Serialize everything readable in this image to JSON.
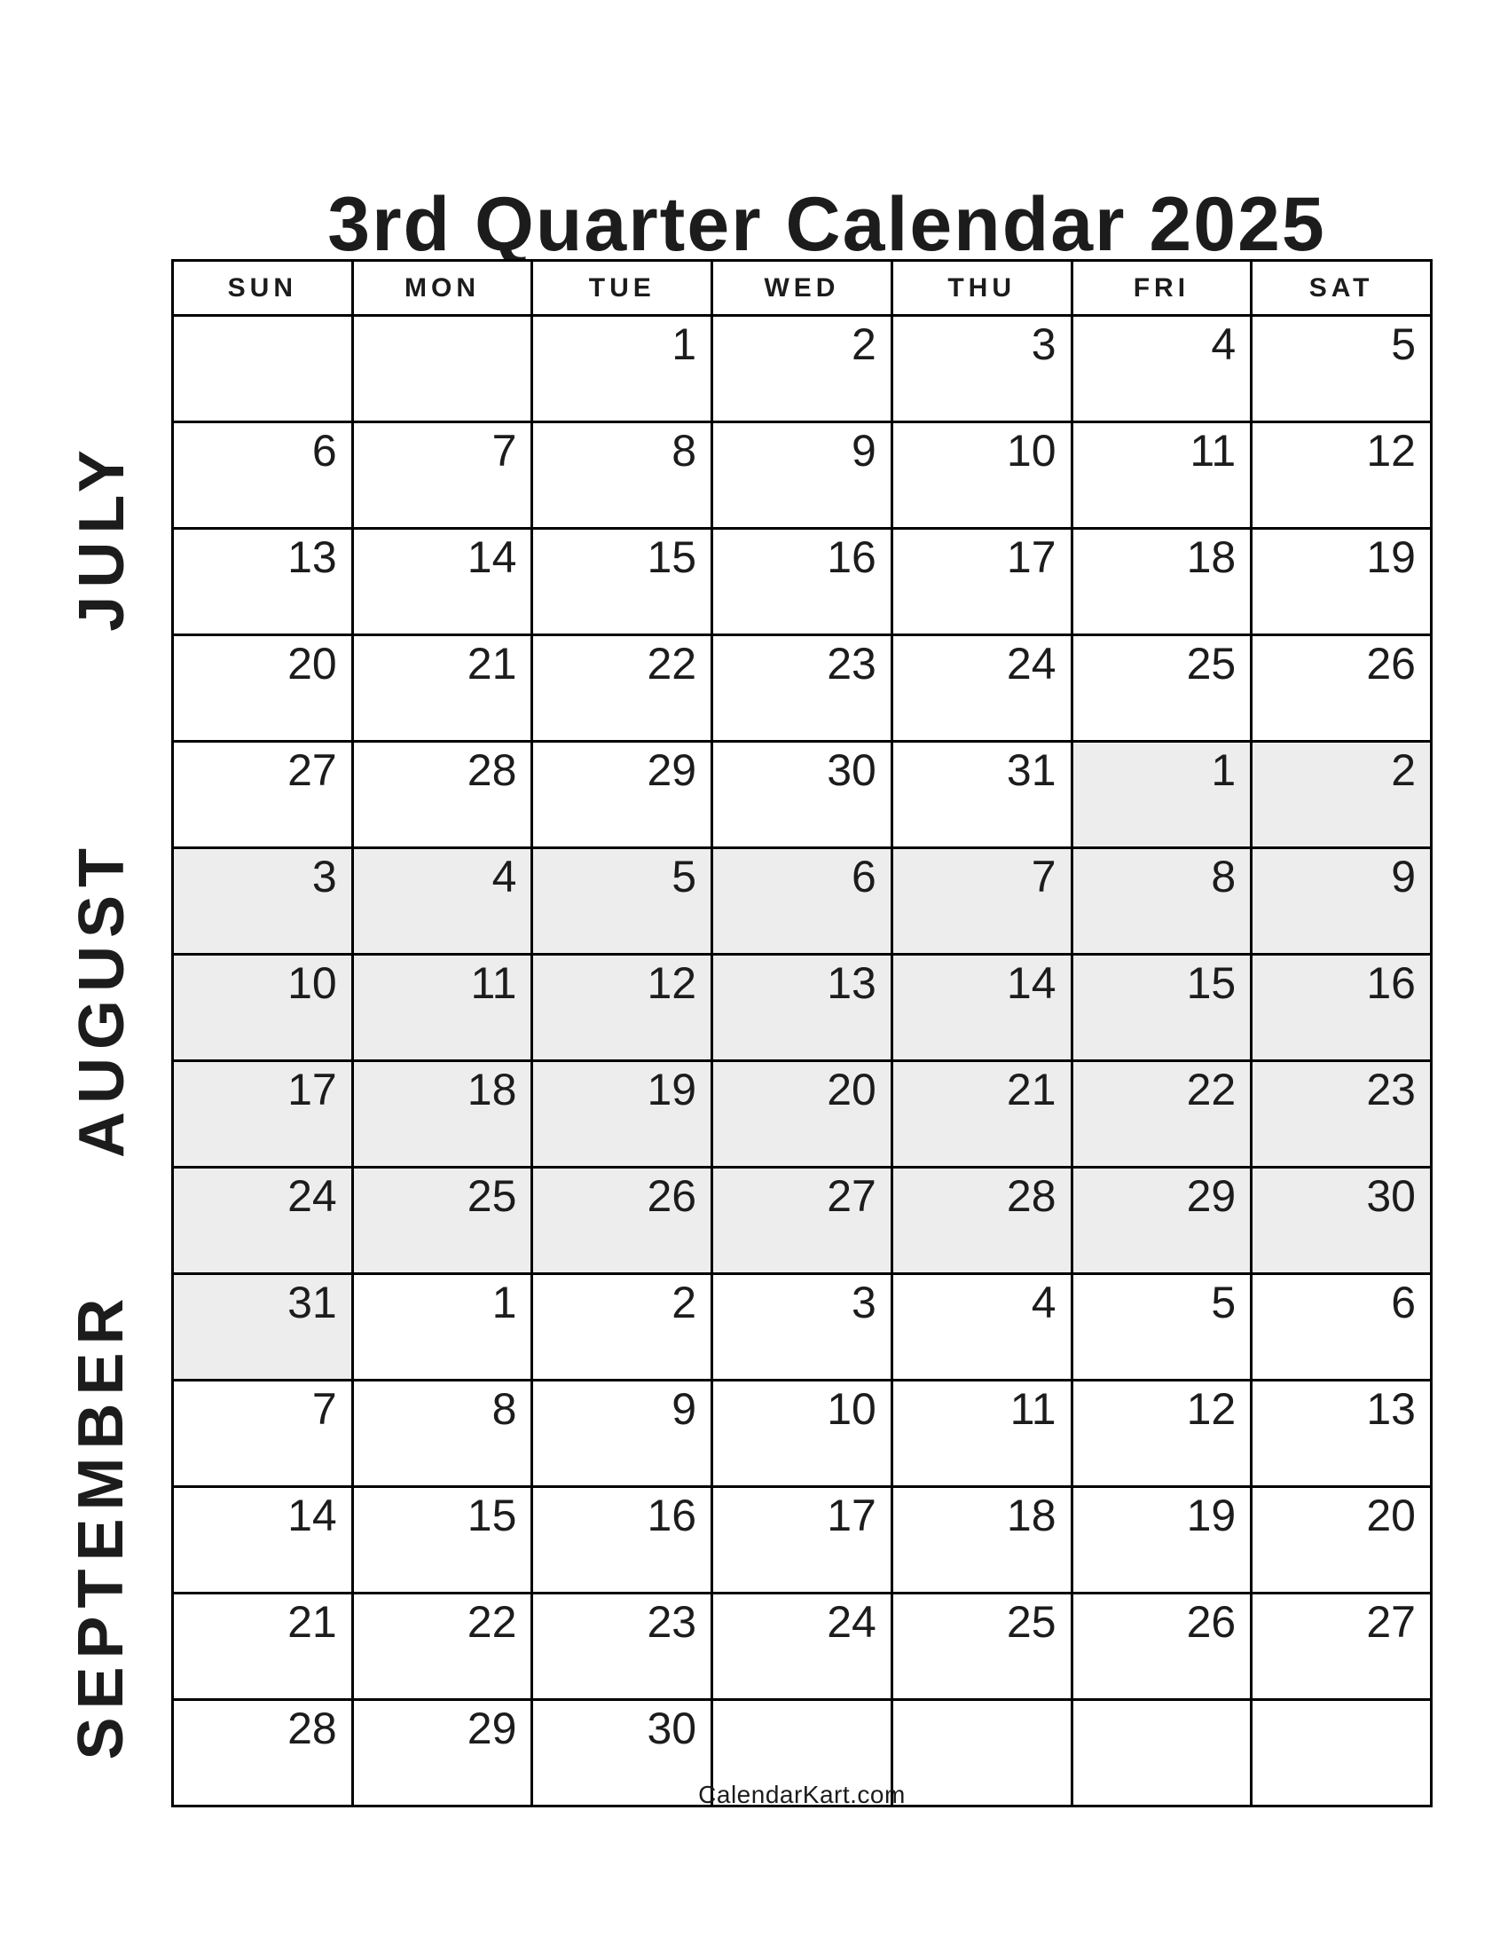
{
  "title": "3rd Quarter Calendar 2025",
  "weekdays": [
    "SUN",
    "MON",
    "TUE",
    "WED",
    "THU",
    "FRI",
    "SAT"
  ],
  "months": [
    {
      "key": "july",
      "label": "JULY"
    },
    {
      "key": "august",
      "label": "AUGUST"
    },
    {
      "key": "september",
      "label": "SEPTEMBER"
    }
  ],
  "grid": {
    "rows": [
      {
        "cells": [
          {
            "day": "",
            "shaded": false
          },
          {
            "day": "",
            "shaded": false
          },
          {
            "day": "1",
            "shaded": false
          },
          {
            "day": "2",
            "shaded": false
          },
          {
            "day": "3",
            "shaded": false
          },
          {
            "day": "4",
            "shaded": false
          },
          {
            "day": "5",
            "shaded": false
          }
        ]
      },
      {
        "cells": [
          {
            "day": "6",
            "shaded": false
          },
          {
            "day": "7",
            "shaded": false
          },
          {
            "day": "8",
            "shaded": false
          },
          {
            "day": "9",
            "shaded": false
          },
          {
            "day": "10",
            "shaded": false
          },
          {
            "day": "11",
            "shaded": false
          },
          {
            "day": "12",
            "shaded": false
          }
        ]
      },
      {
        "cells": [
          {
            "day": "13",
            "shaded": false
          },
          {
            "day": "14",
            "shaded": false
          },
          {
            "day": "15",
            "shaded": false
          },
          {
            "day": "16",
            "shaded": false
          },
          {
            "day": "17",
            "shaded": false
          },
          {
            "day": "18",
            "shaded": false
          },
          {
            "day": "19",
            "shaded": false
          }
        ]
      },
      {
        "cells": [
          {
            "day": "20",
            "shaded": false
          },
          {
            "day": "21",
            "shaded": false
          },
          {
            "day": "22",
            "shaded": false
          },
          {
            "day": "23",
            "shaded": false
          },
          {
            "day": "24",
            "shaded": false
          },
          {
            "day": "25",
            "shaded": false
          },
          {
            "day": "26",
            "shaded": false
          }
        ]
      },
      {
        "cells": [
          {
            "day": "27",
            "shaded": false
          },
          {
            "day": "28",
            "shaded": false
          },
          {
            "day": "29",
            "shaded": false
          },
          {
            "day": "30",
            "shaded": false
          },
          {
            "day": "31",
            "shaded": false
          },
          {
            "day": "1",
            "shaded": true
          },
          {
            "day": "2",
            "shaded": true
          }
        ]
      },
      {
        "cells": [
          {
            "day": "3",
            "shaded": true
          },
          {
            "day": "4",
            "shaded": true
          },
          {
            "day": "5",
            "shaded": true
          },
          {
            "day": "6",
            "shaded": true
          },
          {
            "day": "7",
            "shaded": true
          },
          {
            "day": "8",
            "shaded": true
          },
          {
            "day": "9",
            "shaded": true
          }
        ]
      },
      {
        "cells": [
          {
            "day": "10",
            "shaded": true
          },
          {
            "day": "11",
            "shaded": true
          },
          {
            "day": "12",
            "shaded": true
          },
          {
            "day": "13",
            "shaded": true
          },
          {
            "day": "14",
            "shaded": true
          },
          {
            "day": "15",
            "shaded": true
          },
          {
            "day": "16",
            "shaded": true
          }
        ]
      },
      {
        "cells": [
          {
            "day": "17",
            "shaded": true
          },
          {
            "day": "18",
            "shaded": true
          },
          {
            "day": "19",
            "shaded": true
          },
          {
            "day": "20",
            "shaded": true
          },
          {
            "day": "21",
            "shaded": true
          },
          {
            "day": "22",
            "shaded": true
          },
          {
            "day": "23",
            "shaded": true
          }
        ]
      },
      {
        "cells": [
          {
            "day": "24",
            "shaded": true
          },
          {
            "day": "25",
            "shaded": true
          },
          {
            "day": "26",
            "shaded": true
          },
          {
            "day": "27",
            "shaded": true
          },
          {
            "day": "28",
            "shaded": true
          },
          {
            "day": "29",
            "shaded": true
          },
          {
            "day": "30",
            "shaded": true
          }
        ]
      },
      {
        "cells": [
          {
            "day": "31",
            "shaded": true
          },
          {
            "day": "1",
            "shaded": false
          },
          {
            "day": "2",
            "shaded": false
          },
          {
            "day": "3",
            "shaded": false
          },
          {
            "day": "4",
            "shaded": false
          },
          {
            "day": "5",
            "shaded": false
          },
          {
            "day": "6",
            "shaded": false
          }
        ]
      },
      {
        "cells": [
          {
            "day": "7",
            "shaded": false
          },
          {
            "day": "8",
            "shaded": false
          },
          {
            "day": "9",
            "shaded": false
          },
          {
            "day": "10",
            "shaded": false
          },
          {
            "day": "11",
            "shaded": false
          },
          {
            "day": "12",
            "shaded": false
          },
          {
            "day": "13",
            "shaded": false
          }
        ]
      },
      {
        "cells": [
          {
            "day": "14",
            "shaded": false
          },
          {
            "day": "15",
            "shaded": false
          },
          {
            "day": "16",
            "shaded": false
          },
          {
            "day": "17",
            "shaded": false
          },
          {
            "day": "18",
            "shaded": false
          },
          {
            "day": "19",
            "shaded": false
          },
          {
            "day": "20",
            "shaded": false
          }
        ]
      },
      {
        "cells": [
          {
            "day": "21",
            "shaded": false
          },
          {
            "day": "22",
            "shaded": false
          },
          {
            "day": "23",
            "shaded": false
          },
          {
            "day": "24",
            "shaded": false
          },
          {
            "day": "25",
            "shaded": false
          },
          {
            "day": "26",
            "shaded": false
          },
          {
            "day": "27",
            "shaded": false
          }
        ]
      },
      {
        "cells": [
          {
            "day": "28",
            "shaded": false
          },
          {
            "day": "29",
            "shaded": false
          },
          {
            "day": "30",
            "shaded": false
          },
          {
            "day": "",
            "shaded": false
          },
          {
            "day": "",
            "shaded": false
          },
          {
            "day": "",
            "shaded": false
          },
          {
            "day": "",
            "shaded": false
          }
        ]
      }
    ]
  },
  "footer": "CalendarKart.com",
  "colors": {
    "background": "#ffffff",
    "border": "#000000",
    "text": "#1c1c1c",
    "shaded_cell": "#ededed"
  }
}
